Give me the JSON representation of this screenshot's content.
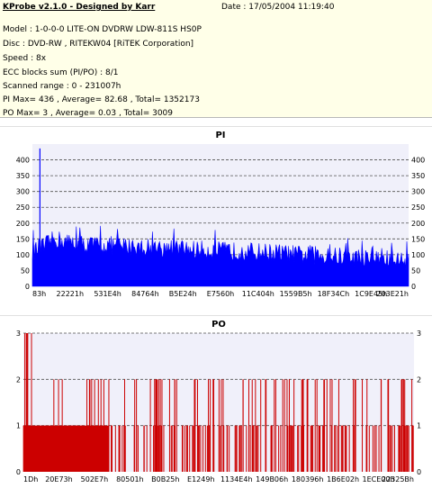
{
  "header": {
    "app_title": "KProbe v2.1.0 - Designed by Karr",
    "date": "Date : 17/05/2004 11:19:40"
  },
  "info_lines": [
    "Model : 1-0-0-0 LITE-ON DVDRW LDW-811S   HS0P",
    "Disc : DVD-RW , RITEKW04 [RiTEK Corporation]",
    "Speed : 8x",
    "ECC blocks sum (PI/PO) : 8/1",
    "Scanned range : 0 - 231007h",
    "PI Max= 436 , Average= 82.68 , Total= 1352173",
    "PO Max= 3 , Average= 0.03 , Total= 3009"
  ],
  "colors": {
    "pi_fill": "#0000ff",
    "po_fill": "#cc0000",
    "plot_bg": "#f0f0fa",
    "grid": "#505050"
  },
  "chart_data": [
    {
      "type": "area",
      "title": "PI",
      "ylim": [
        0,
        450
      ],
      "yticks": [
        0,
        50,
        100,
        150,
        200,
        250,
        300,
        350,
        400
      ],
      "grid": "dashed-horizontal",
      "xtick_labels": [
        "83h",
        "22221h",
        "531E4h",
        "84764h",
        "B5E24h",
        "E7560h",
        "11C404h",
        "1559B5h",
        "18F34Ch",
        "1C9E45h",
        "203E21h"
      ],
      "x": [
        0,
        0.03,
        0.06,
        0.09,
        0.12,
        0.15,
        0.2,
        0.25,
        0.3,
        0.35,
        0.4,
        0.45,
        0.5,
        0.55,
        0.6,
        0.65,
        0.7,
        0.75,
        0.8,
        0.85,
        0.9,
        0.95,
        1.0
      ],
      "y": [
        110,
        125,
        150,
        140,
        135,
        130,
        130,
        125,
        122,
        120,
        118,
        115,
        112,
        110,
        108,
        106,
        100,
        98,
        95,
        92,
        88,
        85,
        80
      ],
      "max": 436,
      "average": 82.68
    },
    {
      "type": "bar",
      "title": "PO",
      "ylim": [
        0,
        3
      ],
      "yticks": [
        0,
        1,
        2,
        3
      ],
      "grid": "dashed-horizontal",
      "xtick_labels": [
        "1Dh",
        "20E73h",
        "502E7h",
        "80501h",
        "B0B25h",
        "E1249h",
        "1134E4h",
        "149B06h",
        "180396h",
        "1B6E02h",
        "1ECE00h",
        "22325Bh"
      ],
      "baseline_value": 1,
      "baseline_x_range": [
        0,
        0.22
      ],
      "spike_values": [
        2,
        3
      ],
      "max": 3,
      "average": 0.03
    }
  ]
}
